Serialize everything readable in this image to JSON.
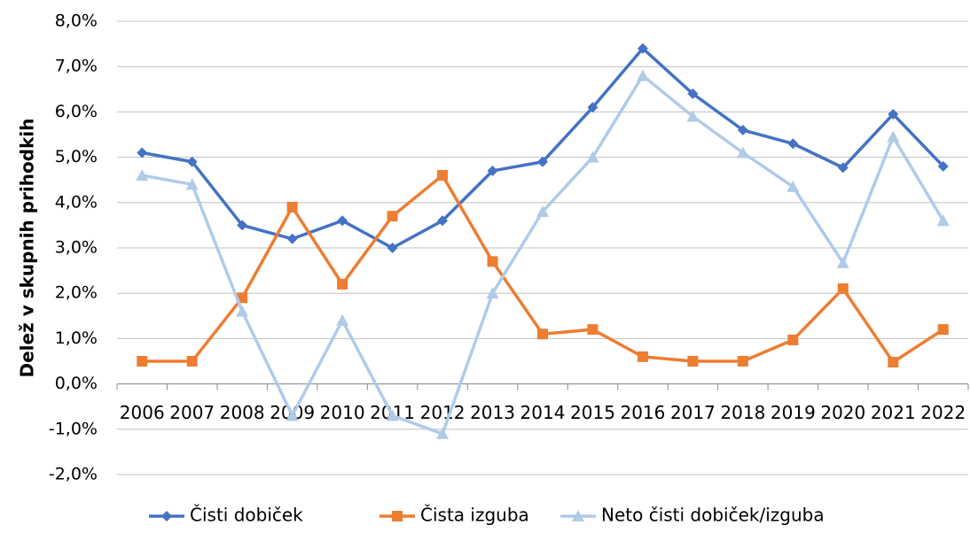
{
  "chart_data": {
    "type": "line",
    "y_label": "Delež v skupnih prihodkih",
    "categories": [
      "2006",
      "2007",
      "2008",
      "2009",
      "2010",
      "2011",
      "2012",
      "2013",
      "2014",
      "2015",
      "2016",
      "2017",
      "2018",
      "2019",
      "2020",
      "2021",
      "2022"
    ],
    "series": [
      {
        "name": "Čisti dobiček",
        "color": "#4472c4",
        "marker": "diamond",
        "values": [
          5.1,
          4.9,
          3.5,
          3.2,
          3.6,
          3.0,
          3.6,
          4.7,
          4.9,
          6.1,
          7.4,
          6.4,
          5.6,
          5.3,
          4.77,
          5.95,
          4.8
        ]
      },
      {
        "name": "Čista izguba",
        "color": "#ed7d31",
        "marker": "square",
        "values": [
          0.5,
          0.5,
          1.9,
          3.9,
          2.2,
          3.7,
          4.6,
          2.7,
          1.1,
          1.2,
          0.6,
          0.5,
          0.5,
          0.97,
          2.1,
          0.48,
          1.2
        ]
      },
      {
        "name": "Neto čisti dobiček/izguba",
        "color": "#b0cbe8",
        "marker": "triangle",
        "values": [
          4.6,
          4.4,
          1.6,
          -0.7,
          1.4,
          -0.7,
          -1.1,
          2.0,
          3.8,
          5.0,
          6.8,
          5.9,
          5.1,
          4.35,
          2.67,
          5.45,
          3.6
        ]
      }
    ],
    "ylim": [
      -2,
      8
    ],
    "yticks": [
      {
        "value": -2,
        "label": "-2,0%"
      },
      {
        "value": -1,
        "label": "-1,0%"
      },
      {
        "value": 0,
        "label": "0,0%"
      },
      {
        "value": 1,
        "label": "1,0%"
      },
      {
        "value": 2,
        "label": "2,0%"
      },
      {
        "value": 3,
        "label": "3,0%"
      },
      {
        "value": 4,
        "label": "4,0%"
      },
      {
        "value": 5,
        "label": "5,0%"
      },
      {
        "value": 6,
        "label": "6,0%"
      },
      {
        "value": 7,
        "label": "7,0%"
      },
      {
        "value": 8,
        "label": "8,0%"
      }
    ],
    "grid": true,
    "legend": "bottom"
  }
}
